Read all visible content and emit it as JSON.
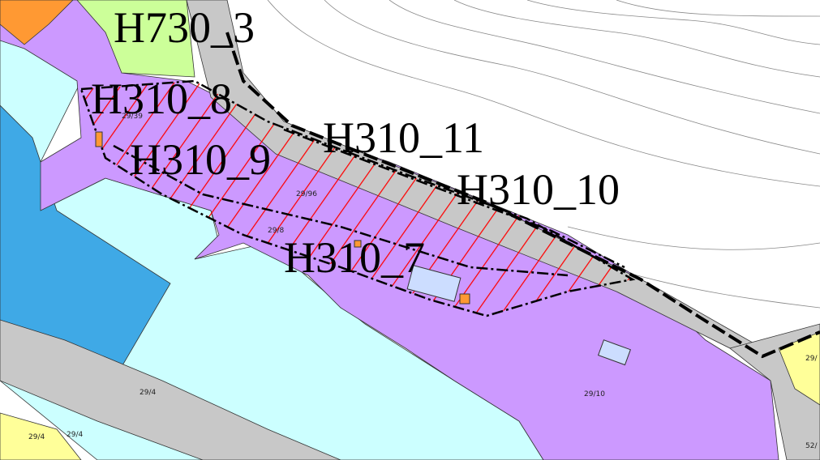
{
  "zones": [
    "H730_3",
    "H310_8",
    "H310_9",
    "H310_11",
    "H310_10",
    "H310_7"
  ],
  "parcels": [
    "29/39",
    "29/96",
    "29/8",
    "29/4",
    "29/4",
    "29/4",
    "29/10",
    "52/",
    "29/"
  ]
}
